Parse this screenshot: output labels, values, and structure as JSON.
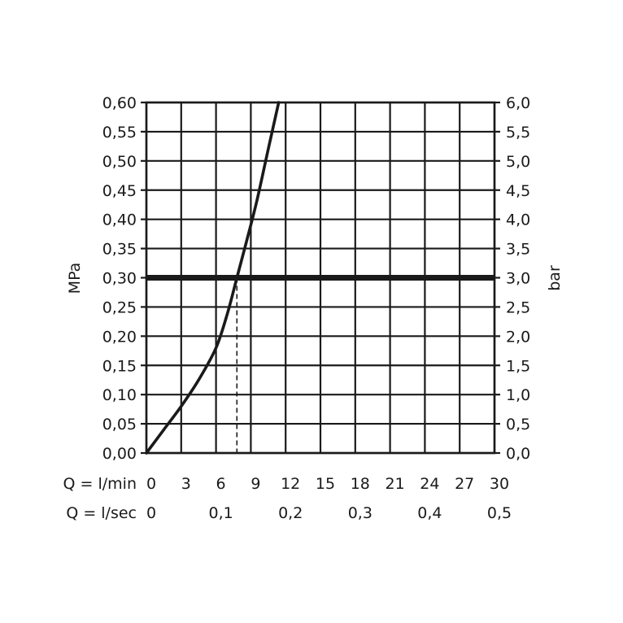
{
  "chart_data": {
    "type": "line",
    "ylabel": "MPa",
    "y2label": "bar",
    "ylim": [
      0,
      0.6
    ],
    "xlim": [
      0,
      30
    ],
    "y_ticks": [
      "0,00",
      "0,05",
      "0,10",
      "0,15",
      "0,20",
      "0,25",
      "0,30",
      "0,35",
      "0,40",
      "0,45",
      "0,50",
      "0,55",
      "0,60"
    ],
    "y2_ticks": [
      "0,0",
      "0,5",
      "1,0",
      "1,5",
      "2,0",
      "2,5",
      "3,0",
      "3,5",
      "4,0",
      "4,5",
      "5,0",
      "5,5",
      "6,0"
    ],
    "x_rows": [
      {
        "label": "Q = l/min",
        "ticks": [
          {
            "x": 0,
            "text": "0"
          },
          {
            "x": 3,
            "text": "3"
          },
          {
            "x": 6,
            "text": "6"
          },
          {
            "x": 9,
            "text": "9"
          },
          {
            "x": 12,
            "text": "12"
          },
          {
            "x": 15,
            "text": "15"
          },
          {
            "x": 18,
            "text": "18"
          },
          {
            "x": 21,
            "text": "21"
          },
          {
            "x": 24,
            "text": "24"
          },
          {
            "x": 27,
            "text": "27"
          },
          {
            "x": 30,
            "text": "30"
          }
        ]
      },
      {
        "label": "Q = l/sec",
        "ticks": [
          {
            "x": 0,
            "text": "0"
          },
          {
            "x": 6,
            "text": "0,1"
          },
          {
            "x": 12,
            "text": "0,2"
          },
          {
            "x": 18,
            "text": "0,3"
          },
          {
            "x": 24,
            "text": "0,4"
          },
          {
            "x": 30,
            "text": "0,5"
          }
        ]
      }
    ],
    "series": [
      {
        "x": [
          0,
          1.5,
          3,
          4.5,
          6,
          7,
          7.8,
          8.6,
          9.5,
          10.5,
          11.4
        ],
        "y": [
          0,
          0.04,
          0.08,
          0.125,
          0.18,
          0.24,
          0.3,
          0.36,
          0.43,
          0.52,
          0.6
        ]
      }
    ],
    "reference_line_y": 0.3,
    "marker_x": 7.8,
    "grid": true
  }
}
